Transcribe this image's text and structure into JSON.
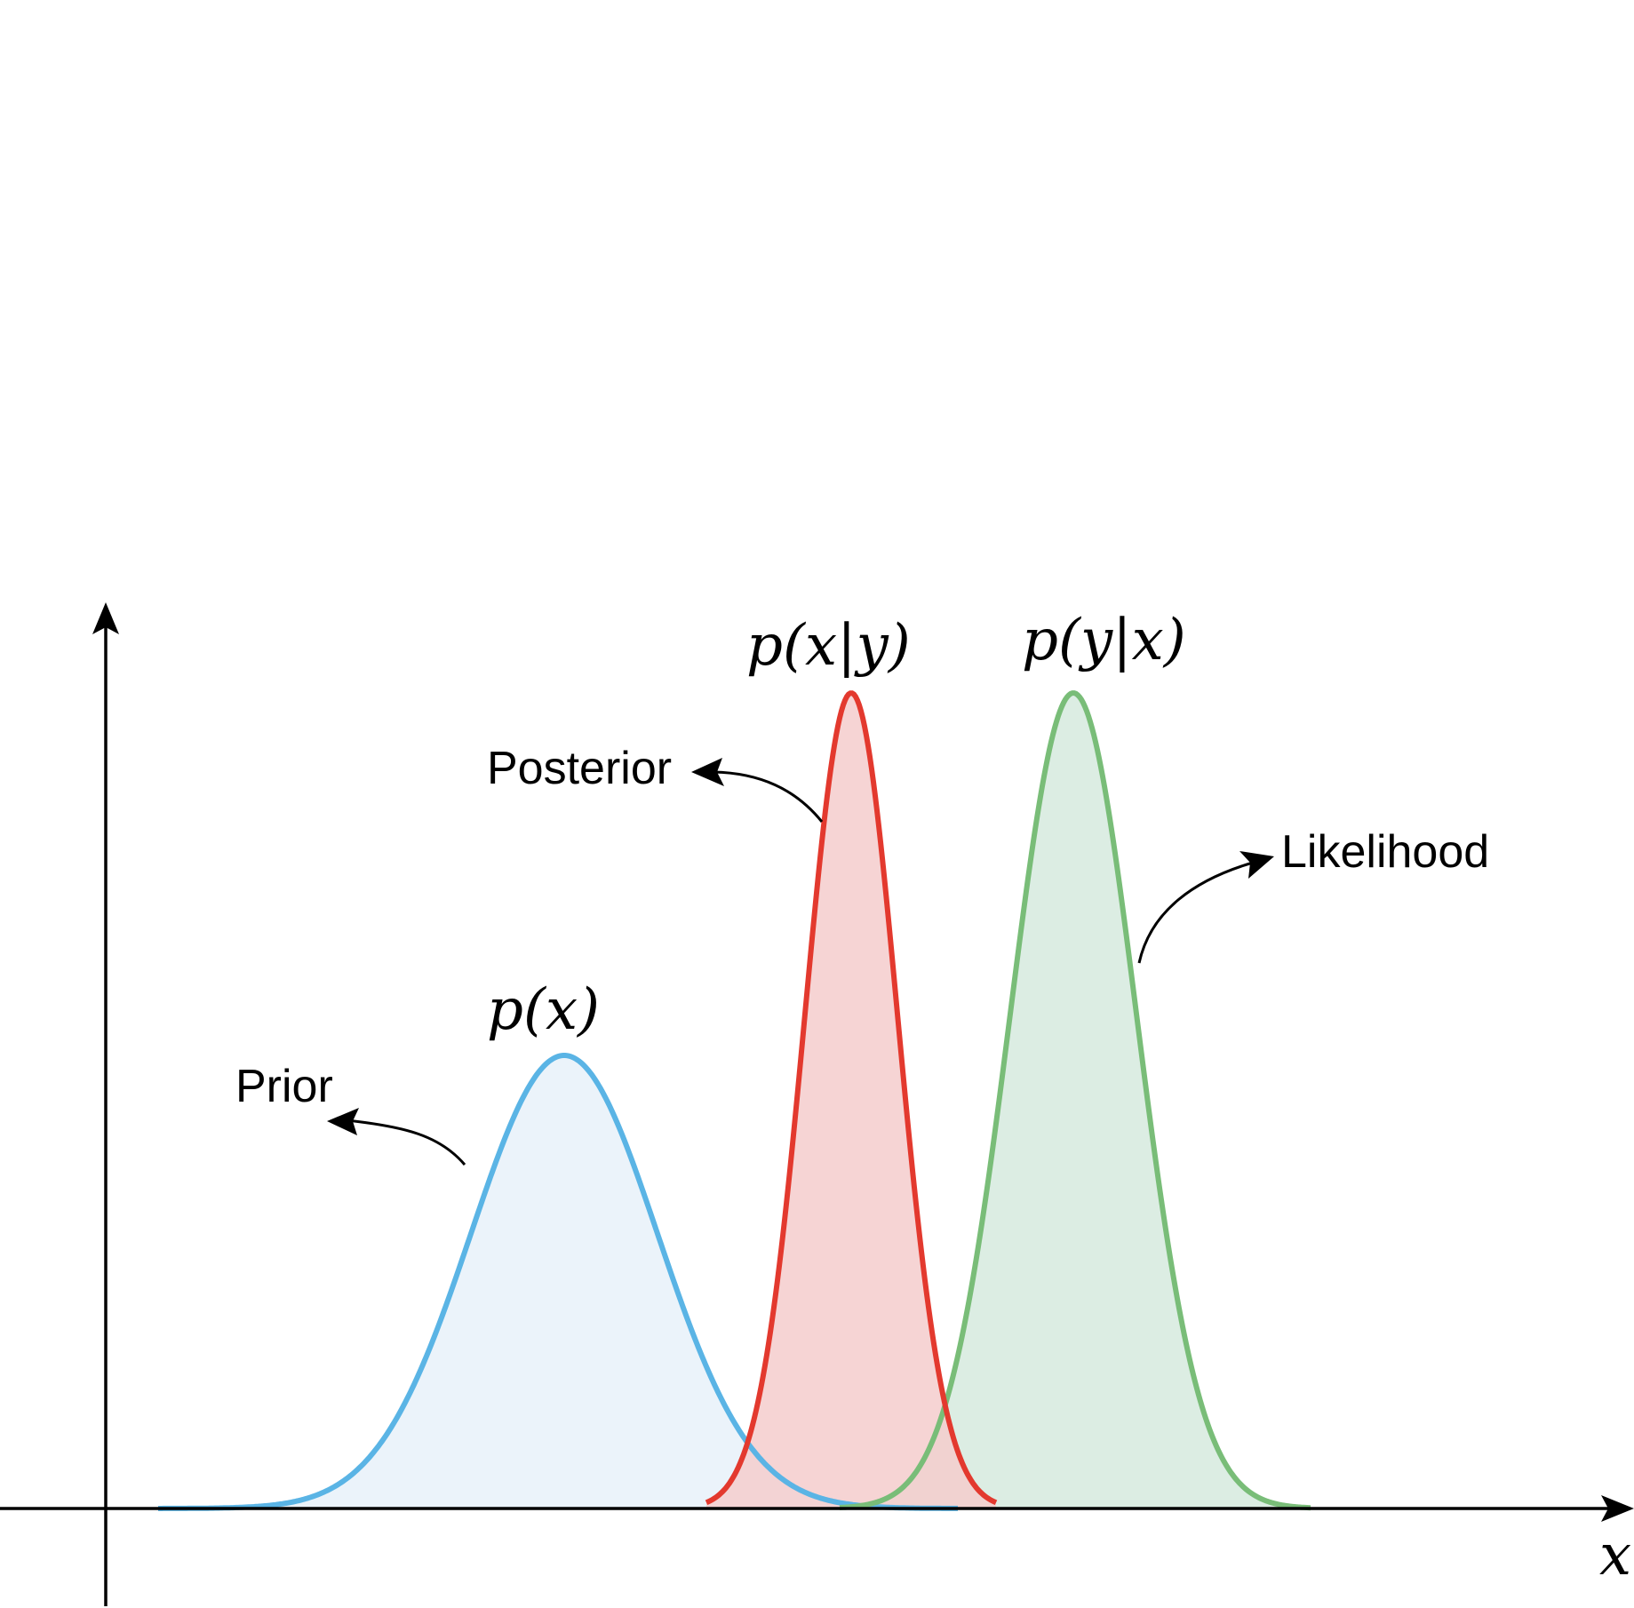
{
  "axis": {
    "x_label": "x"
  },
  "curves": [
    {
      "name": "prior",
      "formula": "p(x)",
      "annotation": "Prior",
      "stroke": "#5ab4e5",
      "fill": "#e9f2fa",
      "mean": 635,
      "sd": 105,
      "height": 510
    },
    {
      "name": "posterior",
      "formula": "p(x|y)",
      "annotation": "Posterior",
      "stroke": "#e3392e",
      "fill": "#f4cccd",
      "mean": 958,
      "sd": 52,
      "height": 918
    },
    {
      "name": "likelihood",
      "formula": "p(y|x)",
      "annotation": "Likelihood",
      "stroke": "#79bd78",
      "fill": "#d8ebe0",
      "mean": 1208,
      "sd": 71,
      "height": 918
    }
  ],
  "colors": {
    "axis": "#000000",
    "overlap_prior_likelihood": "#c8b7a6"
  }
}
